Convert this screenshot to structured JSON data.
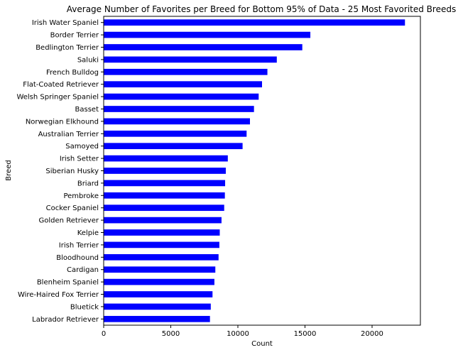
{
  "chart_data": {
    "type": "bar",
    "orientation": "horizontal",
    "title": "Average Number of Favorites per Breed for Bottom 95% of Data - 25 Most Favorited Breeds",
    "xlabel": "Count",
    "ylabel": "Breed",
    "xlim": [
      0,
      23600
    ],
    "xticks": [
      0,
      5000,
      10000,
      15000,
      20000
    ],
    "grid": false,
    "legend": "none",
    "bar_color": "#0000ff",
    "categories": [
      "Irish Water Spaniel",
      "Border Terrier",
      "Bedlington Terrier",
      "Saluki",
      "French Bulldog",
      "Flat-Coated Retriever",
      "Welsh Springer Spaniel",
      "Basset",
      "Norwegian Elkhound",
      "Australian Terrier",
      "Samoyed",
      "Irish Setter",
      "Siberian Husky",
      "Briard",
      "Pembroke",
      "Cocker Spaniel",
      "Golden Retriever",
      "Kelpie",
      "Irish Terrier",
      "Bloodhound",
      "Cardigan",
      "Blenheim Spaniel",
      "Wire-Haired Fox Terrier",
      "Bluetick",
      "Labrador Retriever"
    ],
    "values": [
      22450,
      15400,
      14800,
      12900,
      12200,
      11800,
      11550,
      11200,
      10900,
      10650,
      10350,
      9250,
      9100,
      9050,
      9030,
      8980,
      8780,
      8650,
      8620,
      8560,
      8320,
      8250,
      8110,
      7980,
      7920
    ]
  }
}
